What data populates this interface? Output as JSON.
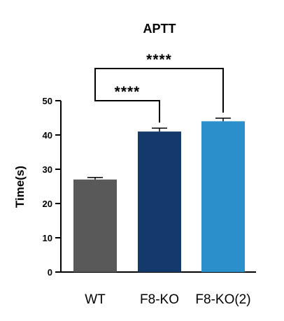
{
  "chart_data": {
    "type": "bar",
    "title": "APTT",
    "ylabel": "Time(s)",
    "xlabel": "",
    "ylim": [
      0,
      50
    ],
    "yticks": [
      0,
      10,
      20,
      30,
      40,
      50
    ],
    "categories": [
      "WT",
      "F8-KO",
      "F8-KO(2)"
    ],
    "values": [
      27,
      41,
      44
    ],
    "errors": [
      0.6,
      1.0,
      0.9
    ],
    "colors": [
      "#595959",
      "#14396b",
      "#2b8fcc"
    ],
    "significance": [
      {
        "from": "WT",
        "to": "F8-KO",
        "label": "****"
      },
      {
        "from": "WT",
        "to": "F8-KO(2)",
        "label": "****"
      }
    ],
    "grid": false,
    "legend": "none"
  }
}
